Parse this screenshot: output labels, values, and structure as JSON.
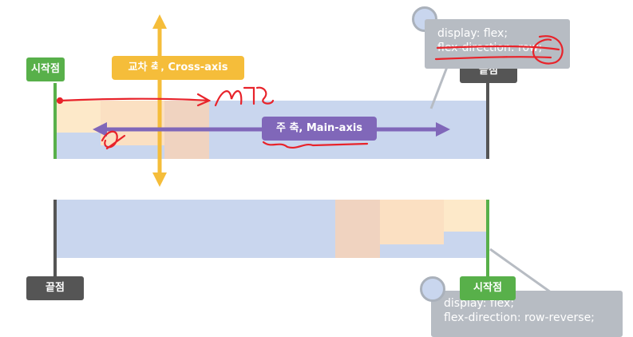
{
  "top_diagram": {
    "start_label": "시작점",
    "end_label": "끝점",
    "cross_axis_label": "교차 축, Cross-axis",
    "main_axis_label": "주 축, Main-axis",
    "code": {
      "line1": "display: flex;",
      "line2": "flex-direction: row;"
    }
  },
  "bottom_diagram": {
    "start_label": "시작점",
    "end_label": "끝점",
    "code": {
      "line1": "display: flex;",
      "line2": "flex-direction: row-reverse;"
    }
  },
  "colors": {
    "band": "#c9d6ee",
    "start_green": "#58b04a",
    "end_dark": "#555555",
    "cross_axis": "#f5bd3a",
    "main_axis": "#8067b9",
    "annotation_red": "#e8232a"
  }
}
